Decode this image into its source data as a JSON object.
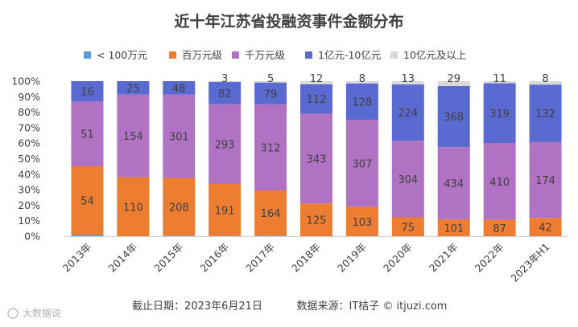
{
  "chart_data": {
    "type": "bar",
    "stacked": "percent",
    "title": "近十年江苏省投融资事件金额分布",
    "categories": [
      "2013年",
      "2014年",
      "2015年",
      "2016年",
      "2017年",
      "2018年",
      "2019年",
      "2020年",
      "2021年",
      "2022年",
      "2023年H1"
    ],
    "series": [
      {
        "name": "< 100万元",
        "color": "#5b9bd5",
        "values": [
          1,
          0,
          2,
          1,
          2,
          0,
          0,
          0,
          0,
          0,
          0
        ]
      },
      {
        "name": "百万元级",
        "color": "#ed7d31",
        "values": [
          54,
          110,
          208,
          191,
          164,
          125,
          103,
          75,
          101,
          87,
          42
        ]
      },
      {
        "name": "千万元级",
        "color": "#b072c3",
        "values": [
          51,
          154,
          301,
          293,
          312,
          343,
          307,
          304,
          434,
          410,
          174
        ]
      },
      {
        "name": "1亿元-10亿元",
        "color": "#5b6ad0",
        "values": [
          16,
          25,
          48,
          82,
          79,
          112,
          128,
          224,
          368,
          319,
          132
        ]
      },
      {
        "name": "10亿元及以上",
        "color": "#d9d9d9",
        "values": [
          0,
          0,
          0,
          3,
          5,
          12,
          8,
          13,
          29,
          11,
          8
        ]
      }
    ],
    "shown_labels": [
      [
        null,
        "54",
        "51",
        "16",
        null
      ],
      [
        null,
        "110",
        "154",
        "25",
        null
      ],
      [
        null,
        "208",
        "301",
        "48",
        null
      ],
      [
        null,
        "191",
        "293",
        "82",
        "3"
      ],
      [
        null,
        "164",
        "312",
        "79",
        "5"
      ],
      [
        null,
        "125",
        "343",
        "112",
        "12"
      ],
      [
        null,
        "103",
        "307",
        "128",
        "8"
      ],
      [
        null,
        "75",
        "304",
        "224",
        "13"
      ],
      [
        null,
        "101",
        "434",
        "368",
        "29"
      ],
      [
        null,
        "87",
        "410",
        "319",
        "11"
      ],
      [
        null,
        "42",
        "174",
        "132",
        "8"
      ]
    ],
    "yticks": [
      "0%",
      "10%",
      "20%",
      "30%",
      "40%",
      "50%",
      "60%",
      "70%",
      "80%",
      "90%",
      "100%"
    ],
    "ylim": [
      0,
      100
    ],
    "legend_position": "top",
    "grid": false
  },
  "footer": {
    "date_text": "截止日期：2023年6月21日",
    "source_text": "数据来源：IT桔子 © itjuzi.com"
  },
  "logo": {
    "text": "大数据说"
  }
}
